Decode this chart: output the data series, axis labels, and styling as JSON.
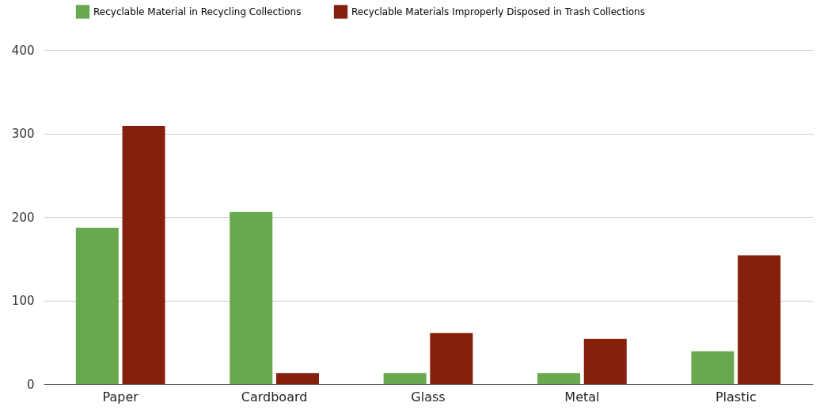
{
  "chart_data": {
    "type": "bar",
    "categories": [
      "Paper",
      "Cardboard",
      "Glass",
      "Metal",
      "Plastic"
    ],
    "series": [
      {
        "name": "Recyclable Material in Recycling Collections",
        "color": "#6aa84f",
        "values": [
          187,
          206,
          13,
          13,
          39
        ]
      },
      {
        "name": "Recyclable Materials Improperly Disposed in Trash Collections",
        "color": "#85200c",
        "values": [
          309,
          13,
          61,
          54,
          154
        ]
      }
    ],
    "ylim": [
      0,
      400
    ],
    "yticks": [
      0,
      100,
      200,
      300,
      400
    ],
    "grid": "y",
    "legend": "top"
  }
}
